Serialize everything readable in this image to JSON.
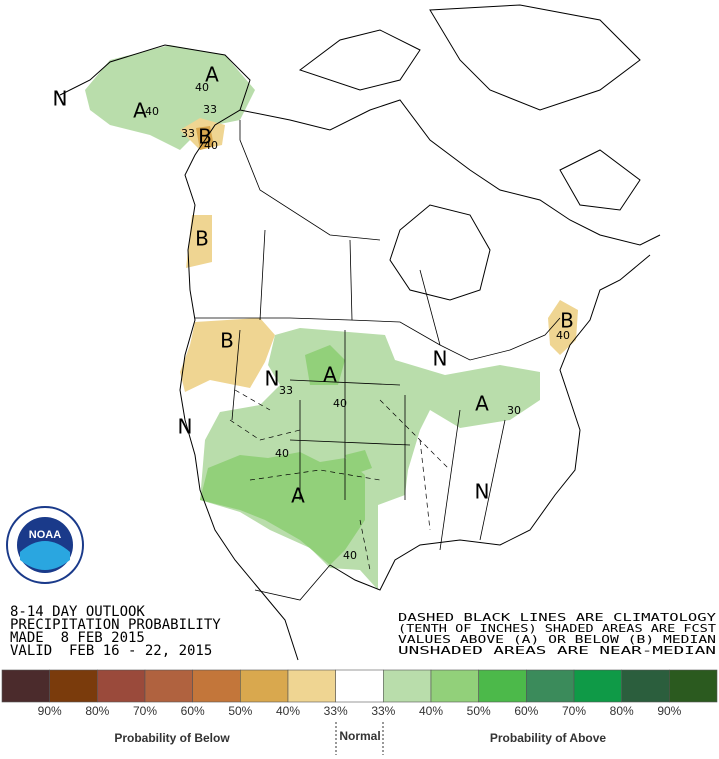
{
  "map_labels": [
    "A",
    "40",
    "33",
    "A",
    "40",
    "N",
    "33",
    "B",
    "40",
    "B",
    "B",
    "N",
    "33",
    "A",
    "40",
    "N",
    "40",
    "A",
    "40",
    "N",
    "A",
    "30",
    "N",
    "B",
    "40"
  ],
  "logo": "NOAA",
  "outlook": [
    "8-14 DAY OUTLOOK",
    "PRECIPITATION PROBABILITY",
    "MADE  8 FEB 2015",
    "VALID  FEB 16 - 22, 2015"
  ],
  "notes": [
    "DASHED BLACK LINES ARE CLIMATOLOGY",
    "(TENTH OF INCHES) SHADED AREAS ARE FCST",
    "VALUES ABOVE (A) OR BELOW (B) MEDIAN",
    "UNSHADED AREAS ARE NEAR-MEDIAN"
  ],
  "legend": {
    "colors": [
      "#4b2b2c",
      "#7a3b0c",
      "#9a4a3b",
      "#b0623f",
      "#c3763a",
      "#d9a84e",
      "#efd592",
      "#ffffff",
      "#b9ddab",
      "#92d07a",
      "#4cb94a",
      "#3b8b5b",
      "#0f9a47",
      "#2b5e3d",
      "#2b5a1f"
    ],
    "labels": [
      "90%",
      "80%",
      "70%",
      "60%",
      "50%",
      "40%",
      "33%",
      "33%",
      "40%",
      "50%",
      "60%",
      "70%",
      "80%",
      "90%"
    ],
    "below_title": "Probability of Below",
    "normal_title": "Normal",
    "above_title": "Probability of Above"
  }
}
